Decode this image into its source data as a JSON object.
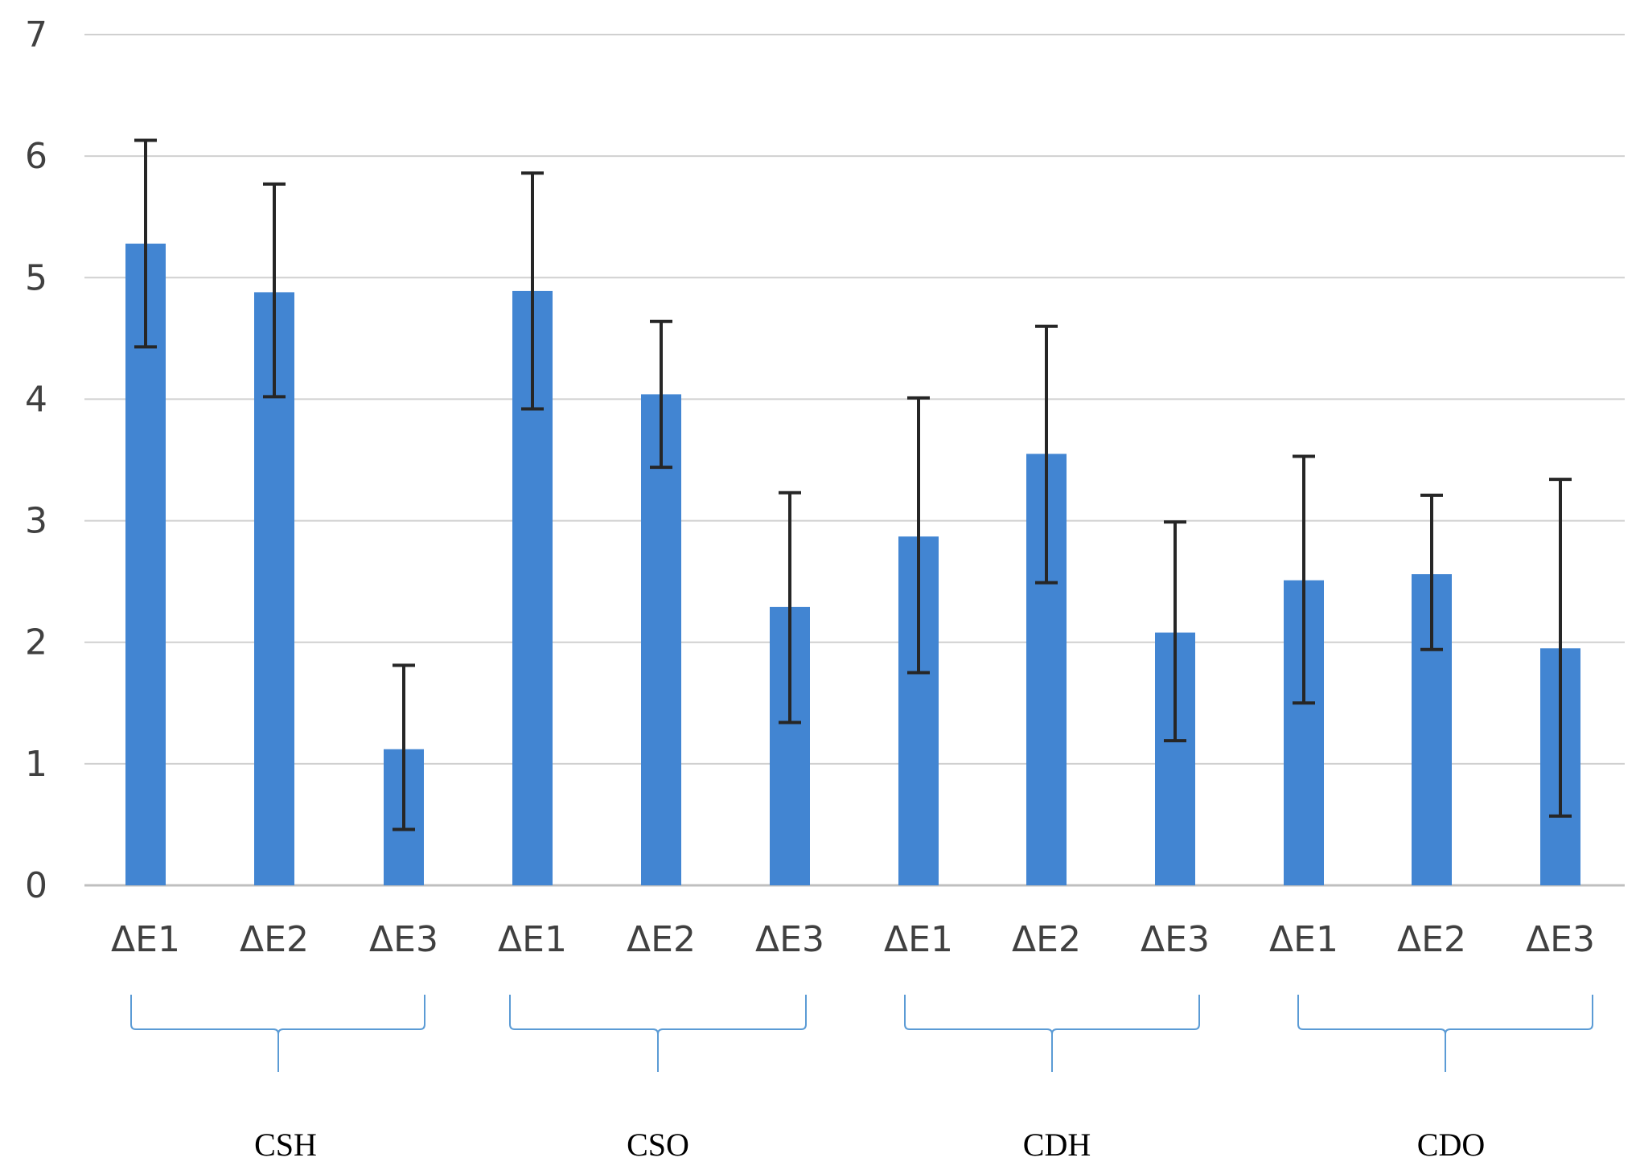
{
  "chart_data": {
    "type": "bar",
    "title": "",
    "xlabel": "",
    "ylabel": "",
    "ylim": [
      0,
      7
    ],
    "yticks": [
      0,
      1,
      2,
      3,
      4,
      5,
      6,
      7
    ],
    "grid": true,
    "legend": "none",
    "colors": {
      "bar": "#4285D2",
      "error_bar": "#262626",
      "grid": "#D0D0D0",
      "brace": "#5B9BD5"
    },
    "groups": [
      {
        "label": "CSH",
        "bars": [
          {
            "label": "ΔE1",
            "value": 5.28,
            "err_low": 4.43,
            "err_high": 6.13
          },
          {
            "label": "ΔE2",
            "value": 4.88,
            "err_low": 4.02,
            "err_high": 5.77
          },
          {
            "label": "ΔE3",
            "value": 1.12,
            "err_low": 0.46,
            "err_high": 1.81
          }
        ]
      },
      {
        "label": "CSO",
        "bars": [
          {
            "label": "ΔE1",
            "value": 4.89,
            "err_low": 3.92,
            "err_high": 5.86
          },
          {
            "label": "ΔE2",
            "value": 4.04,
            "err_low": 3.44,
            "err_high": 4.64
          },
          {
            "label": "ΔE3",
            "value": 2.29,
            "err_low": 1.34,
            "err_high": 3.23
          }
        ]
      },
      {
        "label": "CDH",
        "bars": [
          {
            "label": "ΔE1",
            "value": 2.87,
            "err_low": 1.75,
            "err_high": 4.01
          },
          {
            "label": "ΔE2",
            "value": 3.55,
            "err_low": 2.49,
            "err_high": 4.6
          },
          {
            "label": "ΔE3",
            "value": 2.08,
            "err_low": 1.19,
            "err_high": 2.99
          }
        ]
      },
      {
        "label": "CDO",
        "bars": [
          {
            "label": "ΔE1",
            "value": 2.51,
            "err_low": 1.5,
            "err_high": 3.53
          },
          {
            "label": "ΔE2",
            "value": 2.56,
            "err_low": 1.94,
            "err_high": 3.21
          },
          {
            "label": "ΔE3",
            "value": 1.95,
            "err_low": 0.57,
            "err_high": 3.34
          }
        ]
      }
    ]
  }
}
